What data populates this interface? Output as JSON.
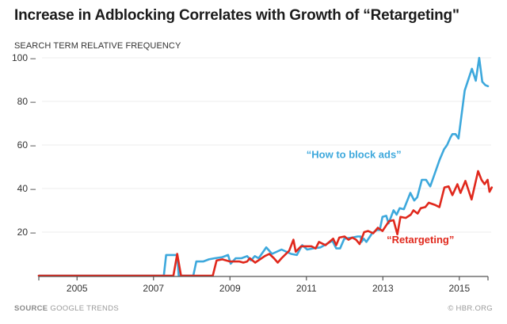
{
  "chart_data": {
    "type": "line",
    "title": "Increase in Adblocking Correlates with Growth of “Retargeting\"",
    "ylabel": "SEARCH TERM RELATIVE FREQUENCY",
    "xlabel": "",
    "xlim": [
      2004.0,
      2015.75
    ],
    "ylim": [
      0,
      100
    ],
    "grid": true,
    "x_ticks": [
      2004,
      2005,
      2007,
      2009,
      2011,
      2013,
      2015,
      2015.75
    ],
    "x_tick_labels": [
      "",
      "2005",
      "2007",
      "2009",
      "2011",
      "2013",
      "2015",
      ""
    ],
    "y_ticks": [
      20,
      40,
      60,
      80,
      100
    ],
    "y_tick_labels": [
      "20 –",
      "40 –",
      "60 –",
      "80 –",
      "100 –"
    ],
    "series": [
      {
        "name": "“How to block ads”",
        "color": "#3da8dc",
        "label_position": [
          2011.0,
          54
        ],
        "points": [
          [
            2004.0,
            0
          ],
          [
            2007.27,
            0
          ],
          [
            2007.33,
            9.5
          ],
          [
            2007.62,
            9.5
          ],
          [
            2007.66,
            0
          ],
          [
            2008.04,
            0
          ],
          [
            2008.12,
            6.5
          ],
          [
            2008.3,
            6.5
          ],
          [
            2008.45,
            7.5
          ],
          [
            2008.6,
            8
          ],
          [
            2008.8,
            8.5
          ],
          [
            2008.95,
            9.5
          ],
          [
            2009.02,
            5.5
          ],
          [
            2009.15,
            8
          ],
          [
            2009.3,
            8
          ],
          [
            2009.45,
            9
          ],
          [
            2009.55,
            7
          ],
          [
            2009.65,
            9
          ],
          [
            2009.75,
            8
          ],
          [
            2009.95,
            13
          ],
          [
            2010.1,
            10
          ],
          [
            2010.35,
            12
          ],
          [
            2010.6,
            10
          ],
          [
            2010.75,
            9.5
          ],
          [
            2010.89,
            14
          ],
          [
            2011.02,
            12
          ],
          [
            2011.17,
            12.5
          ],
          [
            2011.37,
            13
          ],
          [
            2011.47,
            14
          ],
          [
            2011.68,
            16
          ],
          [
            2011.78,
            12.5
          ],
          [
            2011.88,
            12.5
          ],
          [
            2011.99,
            17
          ],
          [
            2012.2,
            17.5
          ],
          [
            2012.34,
            18
          ],
          [
            2012.42,
            18
          ],
          [
            2012.44,
            15.5
          ],
          [
            2012.5,
            17
          ],
          [
            2012.57,
            15.5
          ],
          [
            2012.72,
            19.5
          ],
          [
            2012.84,
            21
          ],
          [
            2012.92,
            21
          ],
          [
            2012.99,
            27
          ],
          [
            2013.09,
            27.5
          ],
          [
            2013.15,
            24
          ],
          [
            2013.28,
            30
          ],
          [
            2013.36,
            28
          ],
          [
            2013.44,
            31
          ],
          [
            2013.55,
            30.5
          ],
          [
            2013.65,
            35
          ],
          [
            2013.72,
            38
          ],
          [
            2013.82,
            34.5
          ],
          [
            2013.9,
            36
          ],
          [
            2014.02,
            44
          ],
          [
            2014.13,
            44
          ],
          [
            2014.24,
            41
          ],
          [
            2014.38,
            48
          ],
          [
            2014.48,
            53
          ],
          [
            2014.6,
            58
          ],
          [
            2014.68,
            60
          ],
          [
            2014.77,
            63.5
          ],
          [
            2014.82,
            65
          ],
          [
            2014.9,
            65
          ],
          [
            2014.98,
            63
          ],
          [
            2015.14,
            85
          ],
          [
            2015.33,
            95
          ],
          [
            2015.43,
            89.5
          ],
          [
            2015.52,
            100
          ],
          [
            2015.6,
            89
          ],
          [
            2015.68,
            87.5
          ],
          [
            2015.75,
            87
          ]
        ]
      },
      {
        "name": "“Retargeting”",
        "color": "#e0281c",
        "label_position": [
          2013.1,
          15
        ],
        "points": [
          [
            2004.0,
            0
          ],
          [
            2007.52,
            0
          ],
          [
            2007.62,
            10
          ],
          [
            2007.72,
            0
          ],
          [
            2008.55,
            0
          ],
          [
            2008.65,
            7
          ],
          [
            2008.8,
            7.5
          ],
          [
            2009.0,
            6.5
          ],
          [
            2009.25,
            6.5
          ],
          [
            2009.35,
            6
          ],
          [
            2009.45,
            6.5
          ],
          [
            2009.52,
            8
          ],
          [
            2009.66,
            6
          ],
          [
            2009.91,
            9
          ],
          [
            2010.03,
            10
          ],
          [
            2010.15,
            8
          ],
          [
            2010.25,
            6
          ],
          [
            2010.35,
            8
          ],
          [
            2010.55,
            11.5
          ],
          [
            2010.66,
            16.5
          ],
          [
            2010.72,
            11
          ],
          [
            2010.86,
            13.5
          ],
          [
            2011.13,
            13.5
          ],
          [
            2011.24,
            12.5
          ],
          [
            2011.33,
            15.5
          ],
          [
            2011.5,
            14
          ],
          [
            2011.7,
            17
          ],
          [
            2011.78,
            14
          ],
          [
            2011.86,
            17.5
          ],
          [
            2012.0,
            18
          ],
          [
            2012.1,
            16.5
          ],
          [
            2012.2,
            17.5
          ],
          [
            2012.3,
            16.5
          ],
          [
            2012.39,
            14.5
          ],
          [
            2012.51,
            20
          ],
          [
            2012.61,
            20.5
          ],
          [
            2012.75,
            19.5
          ],
          [
            2012.87,
            22
          ],
          [
            2012.99,
            20.5
          ],
          [
            2013.16,
            25
          ],
          [
            2013.28,
            25.5
          ],
          [
            2013.38,
            19
          ],
          [
            2013.46,
            27
          ],
          [
            2013.6,
            26.5
          ],
          [
            2013.73,
            28
          ],
          [
            2013.8,
            30
          ],
          [
            2013.91,
            28.5
          ],
          [
            2013.99,
            31
          ],
          [
            2014.11,
            31.5
          ],
          [
            2014.2,
            33.5
          ],
          [
            2014.36,
            32.5
          ],
          [
            2014.48,
            31.5
          ],
          [
            2014.61,
            40.5
          ],
          [
            2014.72,
            41
          ],
          [
            2014.82,
            37
          ],
          [
            2014.95,
            42
          ],
          [
            2015.03,
            38
          ],
          [
            2015.16,
            43.5
          ],
          [
            2015.32,
            35
          ],
          [
            2015.49,
            48
          ],
          [
            2015.58,
            44
          ],
          [
            2015.66,
            42
          ],
          [
            2015.74,
            44
          ],
          [
            2015.79,
            38.5
          ],
          [
            2015.85,
            40.5
          ]
        ]
      }
    ]
  },
  "header": {
    "title": "Increase in Adblocking Correlates with Growth of “Retargeting\"",
    "subtitle": "SEARCH TERM RELATIVE FREQUENCY"
  },
  "footer": {
    "source_label": "SOURCE",
    "source_value": "GOOGLE TRENDS",
    "credit": "© HBR.ORG"
  }
}
